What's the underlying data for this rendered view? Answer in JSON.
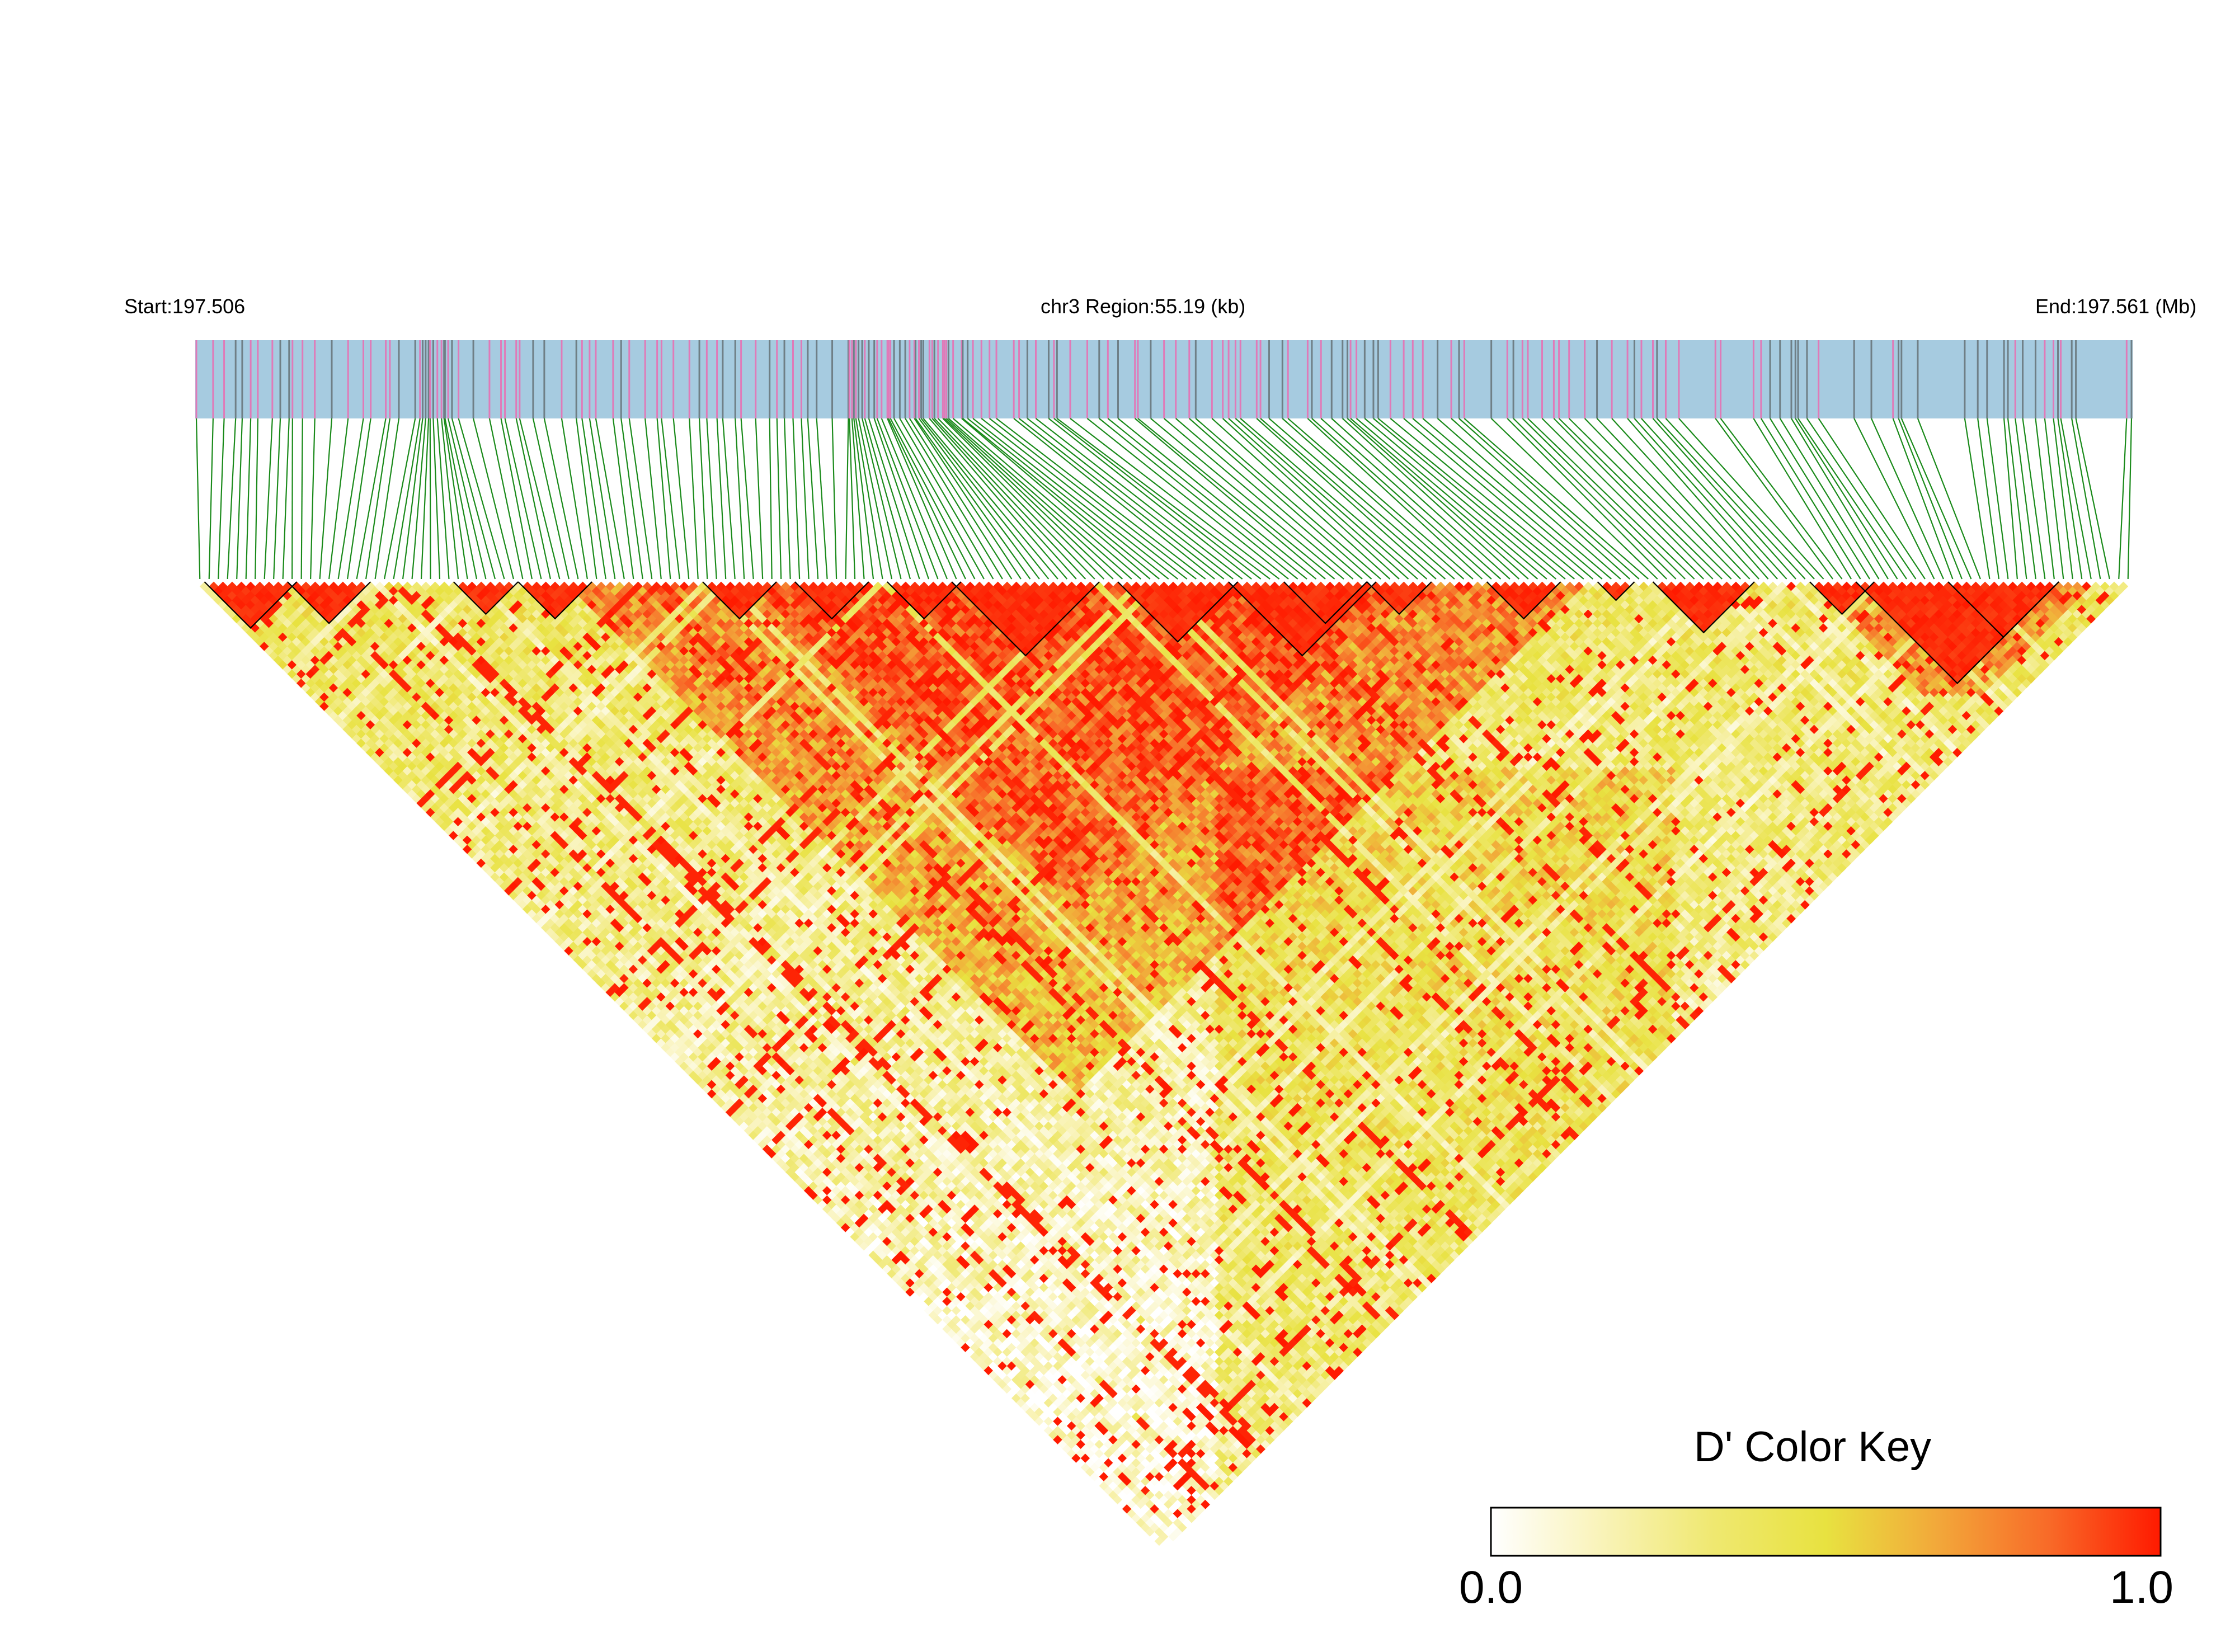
{
  "header": {
    "start_label": "Start:197.506",
    "region_label": "chr3 Region:55.19 (kb)",
    "end_label": "End:197.561 (Mb)"
  },
  "colors": {
    "track_background": "#a6cbe0",
    "variant_pink": "#e07ab8",
    "variant_gray": "#6f7f86",
    "connector_green": "#1a8a1a",
    "ld_high": "#ff1a00",
    "ld_mid": "#e8e240",
    "ld_low": "#ffffff",
    "block_outline": "#000000"
  },
  "chart_data": {
    "type": "heatmap",
    "description_kind": "linkage disequilibrium triangle",
    "chromosome": "chr3",
    "region_start_mb": 197.506,
    "region_end_mb": 197.561,
    "region_length_kb": 55.19,
    "n_markers_approx": 210,
    "metric": "D'",
    "value_range": [
      0.0,
      1.0
    ],
    "ld_blocks_marker_index_ranges": [
      [
        1,
        10
      ],
      [
        10,
        18
      ],
      [
        28,
        34
      ],
      [
        35,
        42
      ],
      [
        55,
        62
      ],
      [
        65,
        72
      ],
      [
        75,
        82
      ],
      [
        82,
        97
      ],
      [
        100,
        112
      ],
      [
        112,
        127
      ],
      [
        118,
        126
      ],
      [
        127,
        133
      ],
      [
        140,
        147
      ],
      [
        152,
        155
      ],
      [
        158,
        168
      ],
      [
        175,
        181
      ],
      [
        180,
        201
      ],
      [
        190,
        201
      ]
    ],
    "legend": {
      "title": "D' Color Key",
      "min_label": "0.0",
      "max_label": "1.0",
      "gradient": [
        "#ffffff",
        "#f9f3b8",
        "#efe870",
        "#e8e240",
        "#f2a83a",
        "#f86a28",
        "#ff1a00"
      ]
    }
  }
}
